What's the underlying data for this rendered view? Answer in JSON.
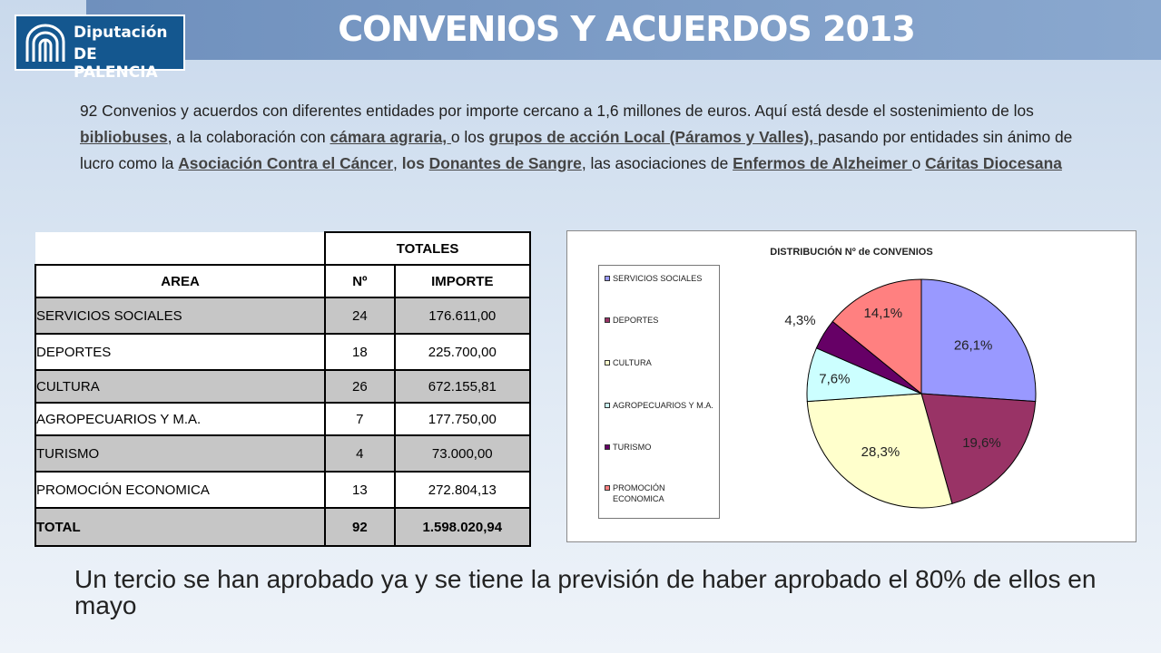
{
  "header": {
    "title": "CONVENIOS Y ACUERDOS 2013",
    "logo_line1": "Diputación",
    "logo_line2": "DE PALENCIA"
  },
  "intro": {
    "t1": "92 Convenios y acuerdos con diferentes  entidades por importe cercano a 1,6 millones de euros. Aquí está desde el sostenimiento de los ",
    "l1": "bibliobuses",
    "t2": ", a la colaboración con ",
    "l2": "cámara agraria, ",
    "t3": "o los ",
    "l3": "grupos de acción Local (Páramos y Valles), ",
    "t4": "pasando por  entidades sin ánimo de lucro como la ",
    "l4": "Asociación Contra el Cáncer",
    "t5": ", ",
    "b5": "los ",
    "l5": "Donantes de Sangre",
    "t6": ", las asociaciones de ",
    "l6": "Enfermos de Alzheimer ",
    "t7": "o ",
    "l7": "Cáritas Diocesana"
  },
  "table": {
    "group_header": "TOTALES",
    "headers": [
      "AREA",
      "Nº",
      "IMPORTE"
    ],
    "rows": [
      [
        "SERVICIOS SOCIALES",
        "24",
        "176.611,00"
      ],
      [
        "DEPORTES",
        "18",
        "225.700,00"
      ],
      [
        "CULTURA",
        "26",
        "672.155,81"
      ],
      [
        "AGROPECUARIOS Y M.A.",
        "7",
        "177.750,00"
      ],
      [
        "TURISMO",
        "4",
        "73.000,00"
      ],
      [
        "PROMOCIÓN ECONOMICA",
        "13",
        "272.804,13"
      ]
    ],
    "total": [
      "TOTAL",
      "92",
      "1.598.020,94"
    ]
  },
  "chart_data": {
    "type": "pie",
    "title": "DISTRIBUCIÓN Nº de CONVENIOS",
    "categories": [
      "SERVICIOS SOCIALES",
      "DEPORTES",
      "CULTURA",
      "AGROPECUARIOS Y M.A.",
      "TURISMO",
      "PROMOCIÓN ECONOMICA"
    ],
    "values": [
      24,
      18,
      26,
      7,
      4,
      13
    ],
    "labels": [
      "26,1%",
      "19,6%",
      "28,3%",
      "7,6%",
      "4,3%",
      "14,1%"
    ],
    "colors": [
      "#9999ff",
      "#993366",
      "#ffffcc",
      "#ccffff",
      "#660066",
      "#ff8080"
    ],
    "legend_position": "left"
  },
  "footer": {
    "text": "Un tercio se han aprobado ya y se tiene la previsión de haber aprobado el 80% de ellos en mayo"
  }
}
